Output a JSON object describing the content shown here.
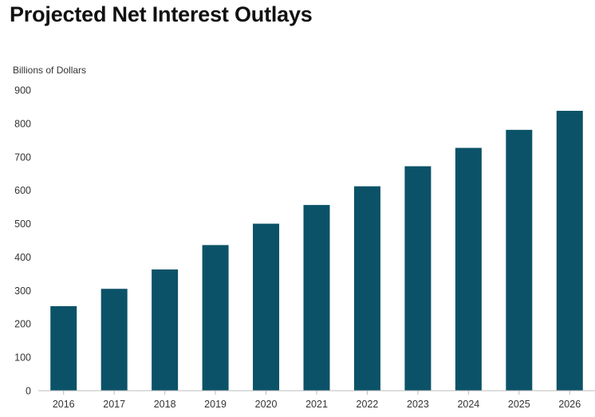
{
  "chart_data": {
    "type": "bar",
    "title": "Projected Net Interest Outlays",
    "ylabel": "Billions of Dollars",
    "xlabel": "",
    "categories": [
      "2016",
      "2017",
      "2018",
      "2019",
      "2020",
      "2021",
      "2022",
      "2023",
      "2024",
      "2025",
      "2026"
    ],
    "values": [
      253,
      305,
      363,
      436,
      500,
      556,
      612,
      672,
      727,
      781,
      838
    ],
    "ylim": [
      0,
      900
    ],
    "yticks": [
      0,
      100,
      200,
      300,
      400,
      500,
      600,
      700,
      800,
      900
    ],
    "grid": false,
    "legend": "none",
    "bar_color": "#0b5268"
  }
}
